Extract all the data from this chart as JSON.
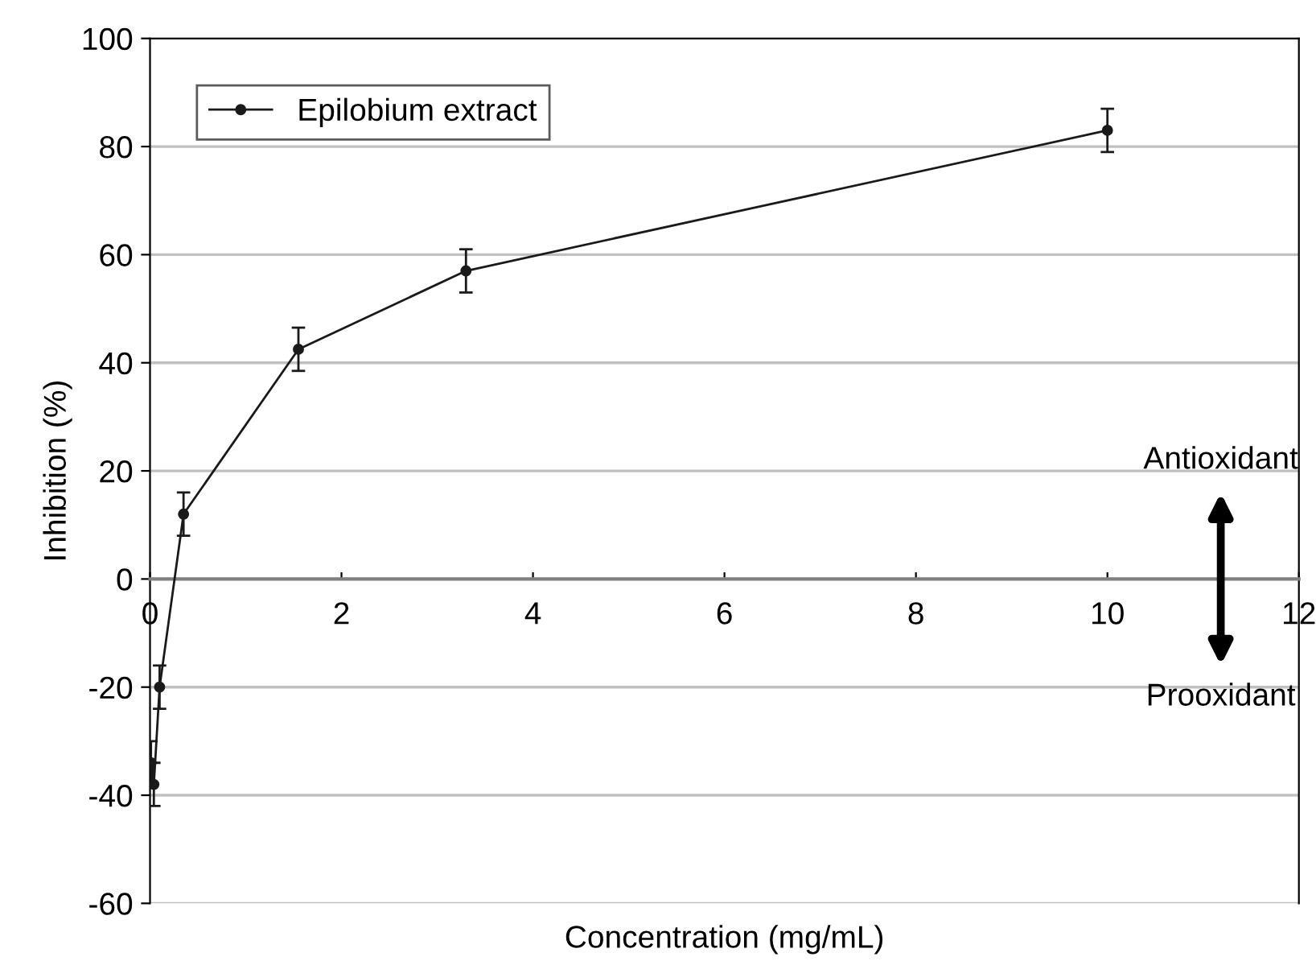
{
  "chart_data": {
    "type": "line",
    "xlabel": "Concentration (mg/mL)",
    "ylabel": "Inhibition (%)",
    "x": [
      0.01,
      0.04,
      0.1,
      0.35,
      1.55,
      3.3,
      10
    ],
    "series": [
      {
        "name": "Epilobium extract",
        "color": "#1a1a1a",
        "values": [
          -34,
          -38,
          -20,
          12,
          42.5,
          57,
          83
        ],
        "errors": [
          4,
          4,
          4,
          4,
          4,
          4,
          4
        ]
      }
    ],
    "xlim": [
      0,
      12
    ],
    "xticks": [
      0,
      2,
      4,
      6,
      8,
      10,
      12
    ],
    "ylim": [
      -60,
      100
    ],
    "yticks": [
      -60,
      -40,
      -20,
      0,
      20,
      40,
      60,
      80,
      100
    ],
    "grid": "y",
    "legend": "top left",
    "marker": "circle",
    "line_style": "solid",
    "annotations": [
      "Antioxidant",
      "Prooxidant"
    ]
  }
}
